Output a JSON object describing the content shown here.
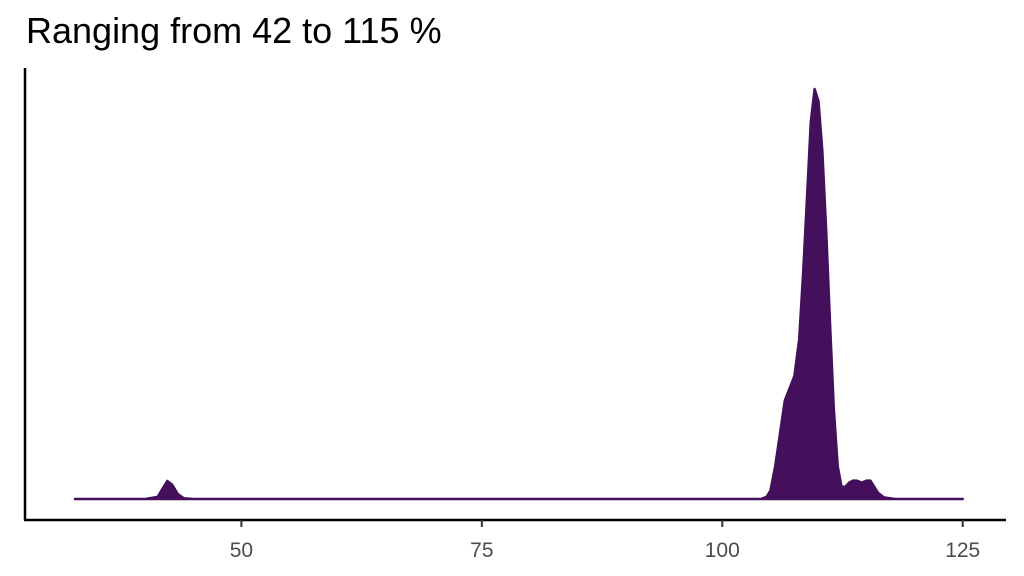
{
  "chart_data": {
    "type": "area",
    "title": "Ranging from 42 to 115 %",
    "xlabel": "",
    "ylabel": "",
    "xlim": [
      27.5,
      129.5
    ],
    "x_ticks": [
      50,
      75,
      100,
      125
    ],
    "x_tick_labels": [
      "50",
      "75",
      "100",
      "125"
    ],
    "y_ticks_shown": false,
    "grid": false,
    "legend": "none",
    "fill_color": "#440F5B",
    "series": [
      {
        "x": [
          32.7,
          40.0,
          41.3,
          41.8,
          42.3,
          42.8,
          43.4,
          44.0,
          45.0,
          60.0,
          80.0,
          100.0,
          104.0,
          104.6,
          105.0,
          105.5,
          106.0,
          106.5,
          107.0,
          107.5,
          108.0,
          108.4,
          108.8,
          109.2,
          109.6,
          110.0,
          110.4,
          110.8,
          111.2,
          111.6,
          112.0,
          112.4,
          112.8,
          113.2,
          113.6,
          114.0,
          114.5,
          115.0,
          115.4,
          115.8,
          116.2,
          116.8,
          118.0,
          125.0
        ],
        "y": [
          0.0,
          0.0,
          0.005,
          0.025,
          0.044,
          0.035,
          0.012,
          0.002,
          0.0,
          0.0,
          0.0,
          0.0,
          0.0,
          0.005,
          0.02,
          0.08,
          0.16,
          0.24,
          0.27,
          0.3,
          0.39,
          0.55,
          0.73,
          0.92,
          1.0,
          0.97,
          0.85,
          0.66,
          0.43,
          0.22,
          0.08,
          0.03,
          0.03,
          0.04,
          0.045,
          0.045,
          0.04,
          0.045,
          0.045,
          0.03,
          0.015,
          0.004,
          0.0,
          0.0
        ]
      }
    ]
  }
}
